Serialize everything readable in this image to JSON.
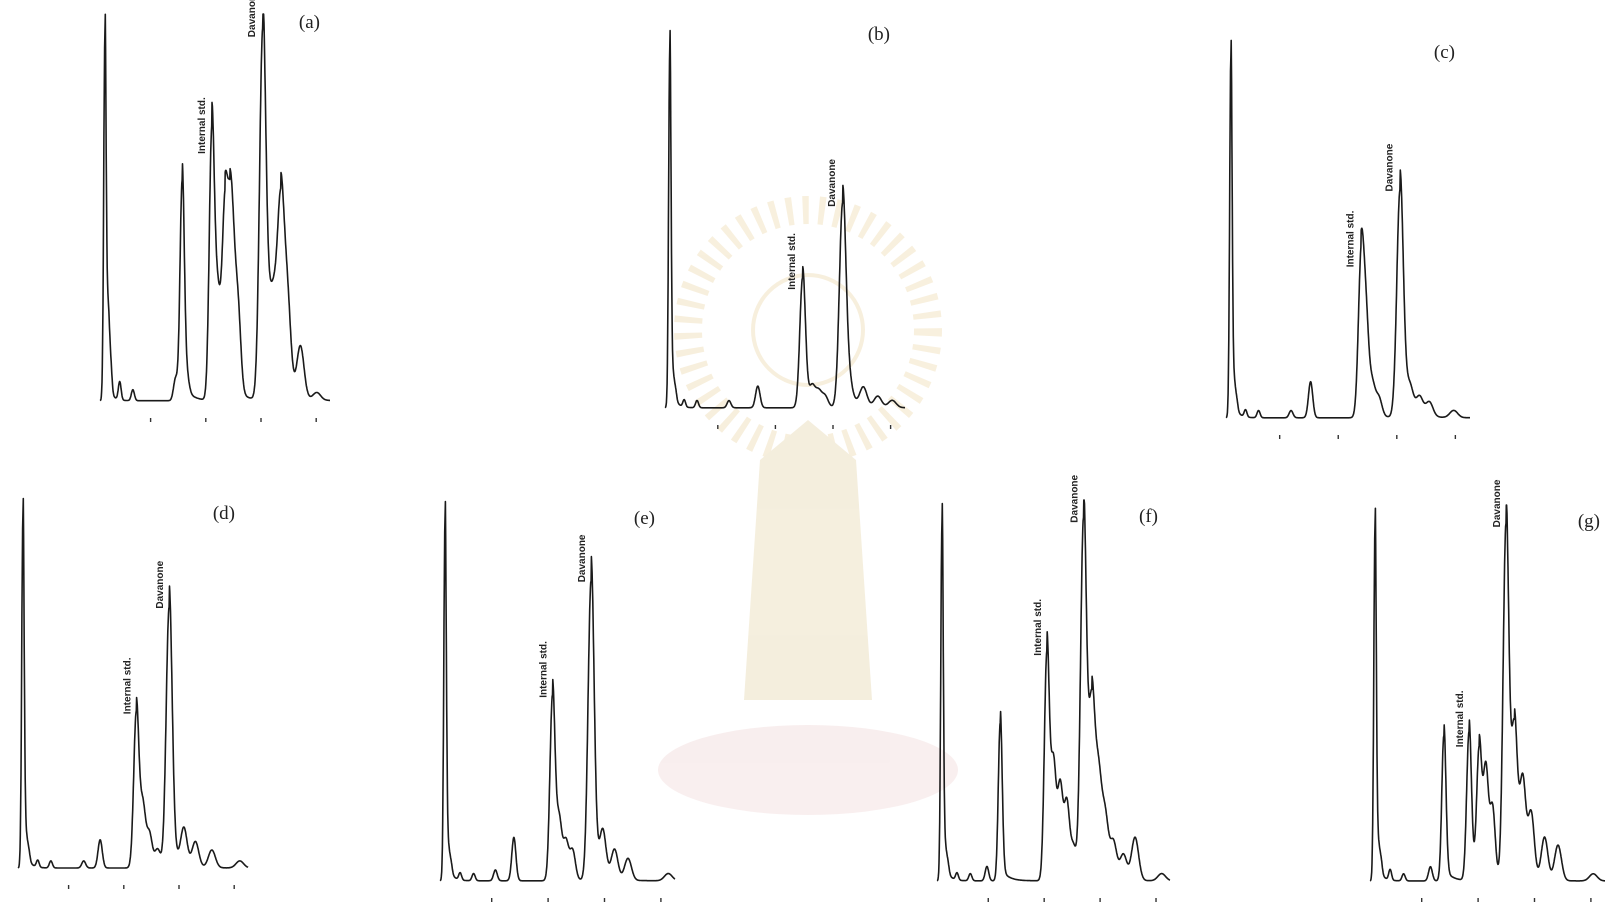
{
  "chart_data": [
    {
      "type": "line",
      "panel_label": "(a)",
      "annotations": [
        {
          "label": "Internal std.",
          "x": 6.75,
          "y": 0.68
        },
        {
          "label": "Davanone",
          "x": 9.8,
          "y": 1.0
        }
      ],
      "series": [
        {
          "x": [
            0.3,
            0.5,
            0.65,
            1.2,
            2.0,
            4.6,
            5.0,
            5.3,
            6.8,
            7.1,
            7.3,
            7.6,
            7.9,
            8.1,
            8.4,
            9.9,
            10.3,
            10.6,
            11.0,
            11.4,
            12.2,
            13.2
          ],
          "y": [
            1.0,
            0.2,
            0.08,
            0.05,
            0.03,
            0.06,
            0.6,
            0.04,
            0.72,
            0.2,
            0.12,
            0.47,
            0.36,
            0.26,
            0.22,
            1.0,
            0.15,
            0.2,
            0.5,
            0.25,
            0.14,
            0.02
          ]
        }
      ],
      "xlim": [
        0,
        14
      ],
      "ylim": [
        0,
        1.08
      ]
    },
    {
      "type": "line",
      "panel_label": "(b)",
      "annotations": [
        {
          "label": "Internal std.",
          "x": 8.5,
          "y": 0.33
        },
        {
          "label": "Davanone",
          "x": 11.0,
          "y": 0.56
        }
      ],
      "series": [
        {
          "x": [
            0.3,
            0.5,
            0.65,
            1.2,
            2.0,
            4.0,
            5.8,
            8.6,
            9.2,
            9.6,
            10.0,
            11.1,
            11.5,
            12.4,
            13.3,
            14.2
          ],
          "y": [
            1.0,
            0.05,
            0.03,
            0.02,
            0.02,
            0.02,
            0.06,
            0.36,
            0.05,
            0.04,
            0.03,
            0.56,
            0.05,
            0.05,
            0.03,
            0.02
          ]
        }
      ],
      "xlim": [
        0,
        15
      ],
      "ylim": [
        0,
        1.08
      ]
    },
    {
      "type": "line",
      "panel_label": "(c)",
      "annotations": [
        {
          "label": "Internal std.",
          "x": 8.2,
          "y": 0.42
        },
        {
          "label": "Davanone",
          "x": 10.6,
          "y": 0.63
        }
      ],
      "series": [
        {
          "x": [
            0.3,
            0.5,
            0.65,
            1.2,
            2.0,
            4.0,
            5.2,
            8.3,
            8.6,
            9.0,
            9.4,
            10.7,
            11.3,
            11.9,
            12.5,
            14.0
          ],
          "y": [
            1.0,
            0.06,
            0.03,
            0.02,
            0.02,
            0.02,
            0.1,
            0.42,
            0.25,
            0.08,
            0.05,
            0.63,
            0.07,
            0.05,
            0.04,
            0.02
          ]
        }
      ],
      "xlim": [
        0,
        15
      ],
      "ylim": [
        0,
        1.08
      ]
    },
    {
      "type": "line",
      "panel_label": "(d)",
      "annotations": [
        {
          "label": "Internal std.",
          "x": 7.2,
          "y": 0.44
        },
        {
          "label": "Davanone",
          "x": 9.2,
          "y": 0.74
        }
      ],
      "series": [
        {
          "x": [
            0.3,
            0.5,
            0.65,
            1.2,
            2.0,
            4.0,
            5.0,
            7.2,
            7.6,
            8.0,
            8.5,
            9.2,
            10.1,
            10.8,
            11.8,
            13.5
          ],
          "y": [
            1.0,
            0.05,
            0.03,
            0.02,
            0.02,
            0.02,
            0.08,
            0.44,
            0.16,
            0.09,
            0.05,
            0.74,
            0.1,
            0.07,
            0.05,
            0.02
          ]
        }
      ],
      "xlim": [
        0,
        14
      ],
      "ylim": [
        0,
        1.08
      ]
    },
    {
      "type": "line",
      "panel_label": "(e)",
      "annotations": [
        {
          "label": "Internal std.",
          "x": 6.7,
          "y": 0.51
        },
        {
          "label": "Davanone",
          "x": 9.0,
          "y": 0.83
        }
      ],
      "series": [
        {
          "x": [
            0.3,
            0.5,
            0.65,
            1.2,
            2.0,
            3.3,
            4.4,
            6.7,
            7.1,
            7.5,
            7.9,
            9.0,
            9.7,
            10.4,
            11.2,
            13.6
          ],
          "y": [
            1.0,
            0.05,
            0.03,
            0.02,
            0.02,
            0.03,
            0.12,
            0.51,
            0.15,
            0.1,
            0.08,
            0.83,
            0.12,
            0.08,
            0.06,
            0.02
          ]
        }
      ],
      "xlim": [
        0,
        14
      ],
      "ylim": [
        0,
        1.08
      ]
    },
    {
      "type": "line",
      "panel_label": "(f)",
      "annotations": [
        {
          "label": "Internal std.",
          "x": 6.6,
          "y": 0.63
        },
        {
          "label": "Davanone",
          "x": 8.8,
          "y": 1.0
        }
      ],
      "series": [
        {
          "x": [
            0.3,
            0.5,
            0.65,
            1.2,
            2.0,
            3.0,
            3.8,
            6.6,
            7.0,
            7.4,
            7.8,
            8.2,
            8.8,
            9.3,
            9.7,
            10.1,
            10.6,
            11.2,
            11.9,
            13.5
          ],
          "y": [
            1.0,
            0.05,
            0.03,
            0.02,
            0.02,
            0.04,
            0.44,
            0.63,
            0.3,
            0.25,
            0.21,
            0.09,
            1.0,
            0.45,
            0.25,
            0.16,
            0.1,
            0.07,
            0.12,
            0.02
          ]
        }
      ],
      "xlim": [
        0,
        14
      ],
      "ylim": [
        0,
        1.08
      ]
    },
    {
      "type": "line",
      "panel_label": "(g)",
      "annotations": [
        {
          "label": "Internal std.",
          "x": 5.9,
          "y": 0.38
        },
        {
          "label": "Davanone",
          "x": 8.1,
          "y": 1.0
        }
      ],
      "series": [
        {
          "x": [
            0.3,
            0.5,
            0.65,
            1.2,
            2.0,
            3.6,
            4.4,
            5.9,
            6.5,
            6.9,
            7.3,
            8.1,
            8.6,
            9.1,
            9.6,
            10.4,
            11.2,
            13.3
          ],
          "y": [
            1.0,
            0.06,
            0.04,
            0.03,
            0.02,
            0.04,
            0.41,
            0.42,
            0.36,
            0.3,
            0.2,
            1.0,
            0.4,
            0.26,
            0.18,
            0.12,
            0.1,
            0.02
          ]
        }
      ],
      "xlim": [
        0,
        14
      ],
      "ylim": [
        0,
        1.08
      ]
    }
  ]
}
